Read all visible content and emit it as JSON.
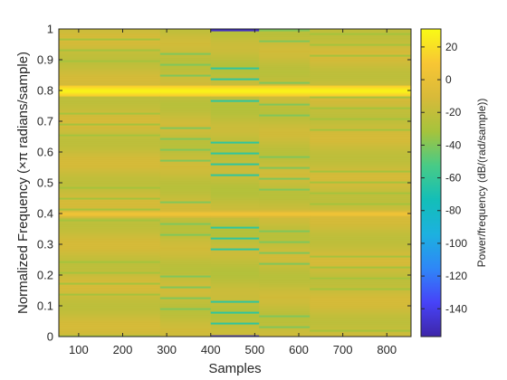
{
  "chart_data": {
    "type": "heatmap",
    "title": "",
    "xlabel": "Samples",
    "ylabel": "Normalized Frequency (×π radians/sample)",
    "xlim": [
      55,
      855
    ],
    "ylim": [
      0,
      1
    ],
    "xticks": [
      "100",
      "200",
      "300",
      "400",
      "500",
      "600",
      "700",
      "800"
    ],
    "yticks": [
      "0",
      "0.1",
      "0.2",
      "0.3",
      "0.4",
      "0.5",
      "0.6",
      "0.7",
      "0.8",
      "0.9",
      "1"
    ],
    "colorbar": {
      "label": "Power/frequency (dB/(rad/sample))",
      "range": [
        -157,
        31
      ],
      "ticks": [
        "20",
        "0",
        "-20",
        "-40",
        "-60",
        "-80",
        "-100",
        "-120",
        "-140"
      ],
      "colormap": "parula",
      "colors": [
        "#3e26a8",
        "#4743f8",
        "#2e87f7",
        "#1cb1df",
        "#13beb8",
        "#48cb86",
        "#a6c33c",
        "#d8ba39",
        "#f8c634",
        "#f9fb15"
      ]
    },
    "segments": [
      {
        "x_start": 55,
        "x_end": 285,
        "base_db": -17,
        "ripple_db": -32
      },
      {
        "x_start": 285,
        "x_end": 400,
        "base_db": -19,
        "ripple_db": -40
      },
      {
        "x_start": 400,
        "x_end": 510,
        "base_db": -21,
        "ripple_db": -62
      },
      {
        "x_start": 510,
        "x_end": 625,
        "base_db": -19,
        "ripple_db": -40
      },
      {
        "x_start": 625,
        "x_end": 855,
        "base_db": -17,
        "ripple_db": -32
      }
    ],
    "tone_bands": [
      {
        "freq_start": 0.78,
        "freq_end": 0.82,
        "peak_db": 30
      },
      {
        "freq_start": 0.39,
        "freq_end": 0.41,
        "peak_db": 10
      }
    ],
    "edge_notch": {
      "x_start": 400,
      "x_end": 510,
      "level_db": -150
    }
  }
}
